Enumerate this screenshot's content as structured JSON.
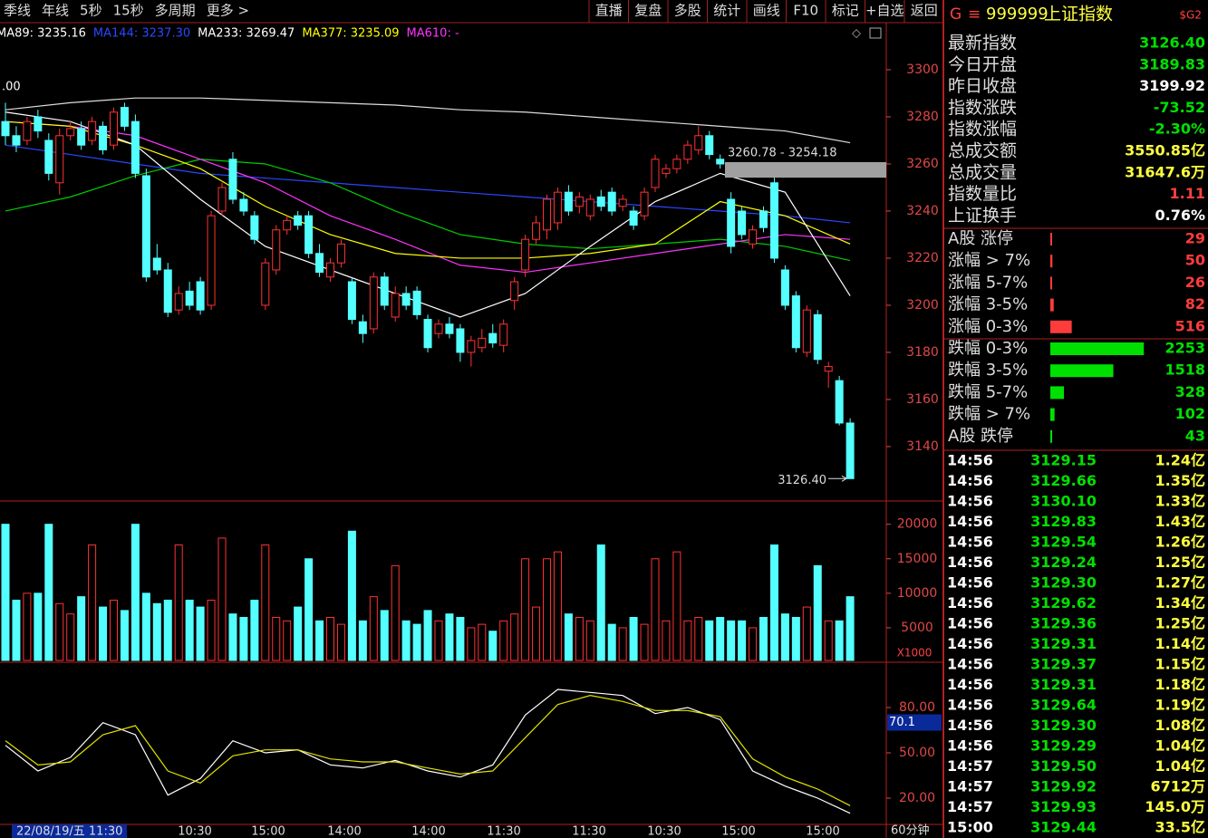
{
  "toolbar": {
    "left": [
      "季线",
      "年线",
      "5秒",
      "15秒",
      "多周期",
      "更多 >"
    ],
    "right": [
      "直播",
      "复盘",
      "多股",
      "统计",
      "画线",
      "F10",
      "标记",
      "+自选",
      "返回"
    ]
  },
  "header": {
    "flag": "G",
    "menu": "≡",
    "code": "999999",
    "name": "上证指数",
    "tag": "$G2"
  },
  "ma_legend": [
    {
      "text": "MA89: 3235.16",
      "color": "#ffffff"
    },
    {
      "text": "MA144: 3237.30",
      "color": "#2848ff"
    },
    {
      "text": "MA233: 3269.47",
      "color": "#ffffff"
    },
    {
      "text": "MA377: 3235.09",
      "color": "#ffff00"
    },
    {
      "text": "MA610: -",
      "color": "#ff33ff"
    }
  ],
  "price": {
    "ylim": [
      3116.9,
      3312.3
    ],
    "yticks": [
      3140,
      3160,
      3180,
      3200,
      3220,
      3240,
      3260,
      3280,
      3300
    ],
    "corner_label": ".00",
    "zone": {
      "label": "3260.78 - 3254.18",
      "high": 3260.78,
      "low": 3254.18
    },
    "last": {
      "value": 3126.4,
      "label": "3126.40"
    },
    "candles": [
      [
        3278,
        3286,
        3268,
        3272
      ],
      [
        3272,
        3276,
        3265,
        3268
      ],
      [
        3270,
        3280,
        3268,
        3278
      ],
      [
        3280,
        3283,
        3271,
        3274
      ],
      [
        3270,
        3273,
        3253,
        3256
      ],
      [
        3252,
        3275,
        3247,
        3272
      ],
      [
        3272,
        3278,
        3270,
        3275
      ],
      [
        3275,
        3278,
        3266,
        3268
      ],
      [
        3270,
        3280,
        3268,
        3278
      ],
      [
        3276,
        3278,
        3264,
        3266
      ],
      [
        3268,
        3284,
        3266,
        3282
      ],
      [
        3284,
        3286,
        3274,
        3276
      ],
      [
        3278,
        3281,
        3254,
        3256
      ],
      [
        3255,
        3258,
        3210,
        3212
      ],
      [
        3220,
        3226,
        3213,
        3215
      ],
      [
        3215,
        3218,
        3195,
        3197
      ],
      [
        3198,
        3208,
        3196,
        3205
      ],
      [
        3206,
        3210,
        3198,
        3200
      ],
      [
        3210,
        3212,
        3196,
        3198
      ],
      [
        3200,
        3240,
        3198,
        3238
      ],
      [
        3240,
        3252,
        3238,
        3250
      ],
      [
        3262,
        3265,
        3243,
        3245
      ],
      [
        3245,
        3248,
        3238,
        3240
      ],
      [
        3238,
        3240,
        3226,
        3228
      ],
      [
        3200,
        3220,
        3198,
        3218
      ],
      [
        3215,
        3234,
        3213,
        3232
      ],
      [
        3232,
        3238,
        3230,
        3236
      ],
      [
        3238,
        3240,
        3232,
        3234
      ],
      [
        3238,
        3240,
        3220,
        3222
      ],
      [
        3222,
        3226,
        3212,
        3214
      ],
      [
        3212,
        3220,
        3210,
        3218
      ],
      [
        3218,
        3228,
        3216,
        3226
      ],
      [
        3210,
        3212,
        3192,
        3194
      ],
      [
        3193,
        3196,
        3184,
        3188
      ],
      [
        3190,
        3214,
        3188,
        3212
      ],
      [
        3212,
        3214,
        3198,
        3200
      ],
      [
        3195,
        3208,
        3193,
        3205
      ],
      [
        3205,
        3208,
        3198,
        3200
      ],
      [
        3206,
        3208,
        3194,
        3196
      ],
      [
        3194,
        3196,
        3180,
        3182
      ],
      [
        3188,
        3194,
        3186,
        3192
      ],
      [
        3192,
        3195,
        3186,
        3188
      ],
      [
        3190,
        3192,
        3176,
        3180
      ],
      [
        3180,
        3187,
        3174,
        3185
      ],
      [
        3182,
        3190,
        3180,
        3186
      ],
      [
        3188,
        3192,
        3182,
        3184
      ],
      [
        3183,
        3194,
        3180,
        3192
      ],
      [
        3202,
        3212,
        3198,
        3210
      ],
      [
        3215,
        3230,
        3212,
        3228
      ],
      [
        3228,
        3238,
        3226,
        3235
      ],
      [
        3232,
        3247,
        3228,
        3245
      ],
      [
        3235,
        3250,
        3232,
        3248
      ],
      [
        3248,
        3251,
        3238,
        3240
      ],
      [
        3242,
        3248,
        3239,
        3246
      ],
      [
        3238,
        3247,
        3236,
        3245
      ],
      [
        3246,
        3249,
        3240,
        3242
      ],
      [
        3248,
        3250,
        3238,
        3240
      ],
      [
        3242,
        3247,
        3240,
        3245
      ],
      [
        3240,
        3242,
        3232,
        3234
      ],
      [
        3238,
        3250,
        3236,
        3248
      ],
      [
        3250,
        3264,
        3248,
        3262
      ],
      [
        3256,
        3260,
        3254,
        3258
      ],
      [
        3258,
        3264,
        3256,
        3262
      ],
      [
        3262,
        3270,
        3260,
        3268
      ],
      [
        3266,
        3276,
        3264,
        3272
      ],
      [
        3272,
        3274,
        3262,
        3264
      ],
      [
        3262,
        3264,
        3258,
        3260
      ],
      [
        3245,
        3248,
        3222,
        3225
      ],
      [
        3240,
        3242,
        3228,
        3230
      ],
      [
        3226,
        3234,
        3224,
        3232
      ],
      [
        3240,
        3242,
        3231,
        3233
      ],
      [
        3252,
        3255,
        3218,
        3220
      ],
      [
        3215,
        3217,
        3198,
        3200
      ],
      [
        3204,
        3206,
        3180,
        3182
      ],
      [
        3180,
        3200,
        3178,
        3198
      ],
      [
        3196,
        3198,
        3175,
        3177
      ],
      [
        3172,
        3176,
        3165,
        3174
      ],
      [
        3168,
        3170,
        3149,
        3150
      ],
      [
        3150,
        3152,
        3126.4,
        3126.4
      ]
    ],
    "ma_x": [
      0,
      6,
      12,
      18,
      24,
      30,
      36,
      42,
      48,
      54,
      60,
      66,
      72,
      78
    ],
    "ma_lines": [
      {
        "color": "#dddddd",
        "values": [
          3283,
          3286,
          3288,
          3288,
          3287,
          3286,
          3285,
          3283,
          3282,
          3280,
          3278,
          3276,
          3274,
          3269
        ]
      },
      {
        "color": "#2848ff",
        "values": [
          3268,
          3264,
          3260,
          3256,
          3254,
          3252,
          3250,
          3248,
          3246,
          3244,
          3242,
          3240,
          3238,
          3235
        ]
      },
      {
        "color": "#00cc00",
        "values": [
          3240,
          3246,
          3255,
          3262,
          3260,
          3252,
          3240,
          3230,
          3226,
          3224,
          3226,
          3228,
          3225,
          3219
        ]
      },
      {
        "color": "#ff33ff",
        "values": [
          3278,
          3276,
          3272,
          3262,
          3252,
          3238,
          3228,
          3217,
          3214,
          3218,
          3222,
          3226,
          3230,
          3228
        ]
      },
      {
        "color": "#ffff00",
        "values": [
          3278,
          3276,
          3268,
          3258,
          3242,
          3230,
          3222,
          3220,
          3220,
          3222,
          3226,
          3244,
          3238,
          3226
        ]
      },
      {
        "color": "#ffffff",
        "values": [
          3282,
          3278,
          3268,
          3245,
          3225,
          3215,
          3205,
          3195,
          3205,
          3225,
          3244,
          3256,
          3248,
          3204
        ]
      }
    ]
  },
  "volume": {
    "ylim": [
      0,
      23375
    ],
    "yticks": [
      5000,
      10000,
      15000,
      20000
    ],
    "unit": "X1000",
    "values": [
      20000,
      9000,
      10000,
      10000,
      20000,
      8500,
      7000,
      9500,
      17000,
      8000,
      9000,
      7500,
      20000,
      10000,
      8500,
      9000,
      17000,
      9000,
      8000,
      9000,
      18000,
      7000,
      6500,
      9000,
      17000,
      6500,
      6000,
      8000,
      15000,
      6000,
      6500,
      5500,
      19000,
      6000,
      9500,
      7500,
      14000,
      6000,
      5500,
      7500,
      6000,
      7000,
      6500,
      5000,
      5500,
      4500,
      6000,
      7000,
      15000,
      8000,
      15000,
      16000,
      7000,
      6500,
      6000,
      17000,
      5500,
      5000,
      6500,
      5500,
      15000,
      6000,
      16000,
      6000,
      6500,
      6000,
      6500,
      6000,
      6000,
      5000,
      6500,
      17000,
      7000,
      6500,
      8000,
      14000,
      6000,
      6000,
      9500
    ]
  },
  "indicator": {
    "ylim": [
      2.6,
      110
    ],
    "yticks": [
      {
        "value": 20,
        "label": "20.00"
      },
      {
        "value": 50,
        "label": "50.00"
      },
      {
        "value": 80,
        "label": "80.00"
      }
    ],
    "current": {
      "value": 70.1,
      "label": "70.1"
    },
    "x": [
      0,
      3,
      6,
      9,
      12,
      15,
      18,
      21,
      24,
      27,
      30,
      33,
      36,
      39,
      42,
      45,
      48,
      51,
      54,
      57,
      60,
      63,
      66,
      69,
      72,
      75,
      78
    ],
    "k": [
      55,
      38,
      47,
      70,
      62,
      22,
      33,
      58,
      50,
      52,
      42,
      40,
      45,
      38,
      34,
      42,
      75,
      92,
      90,
      88,
      76,
      80,
      72,
      38,
      28,
      20,
      10
    ],
    "d": [
      58,
      42,
      44,
      62,
      68,
      38,
      30,
      48,
      52,
      52,
      46,
      44,
      44,
      40,
      36,
      38,
      60,
      82,
      88,
      84,
      78,
      78,
      74,
      46,
      34,
      26,
      15
    ]
  },
  "xaxis": [
    "22/08/19/五 11:30",
    "10:30",
    "15:00",
    "14:00",
    "14:00",
    "11:30",
    "11:30",
    "10:30",
    "15:00",
    "15:00"
  ],
  "period": "60分钟",
  "quote": [
    {
      "label": "最新指数",
      "value": "3126.40",
      "color": "#00e000"
    },
    {
      "label": "今日开盘",
      "value": "3189.83",
      "color": "#00e000"
    },
    {
      "label": "昨日收盘",
      "value": "3199.92",
      "color": "#ffffff"
    },
    {
      "label": "指数涨跌",
      "value": "-73.52",
      "color": "#00e000"
    },
    {
      "label": "指数涨幅",
      "value": "-2.30%",
      "color": "#00e000"
    },
    {
      "label": "总成交额",
      "value": "3550.85亿",
      "color": "#ffff40"
    },
    {
      "label": "总成交量",
      "value": "31647.6万",
      "color": "#ffff40"
    },
    {
      "label": "指数量比",
      "value": "1.11",
      "color": "#ff4040"
    },
    {
      "label": "上证换手",
      "value": "0.76%",
      "color": "#ffffff"
    }
  ],
  "breadth": [
    {
      "label": "A股 涨停",
      "value": 29,
      "color": "#ff3c3c"
    },
    {
      "label": "涨幅 > 7%",
      "value": 50,
      "color": "#ff3c3c"
    },
    {
      "label": "涨幅 5-7%",
      "value": 26,
      "color": "#ff3c3c"
    },
    {
      "label": "涨幅 3-5%",
      "value": 82,
      "color": "#ff3c3c"
    },
    {
      "label": "涨幅 0-3%",
      "value": 516,
      "color": "#ff3c3c"
    },
    {
      "label": "跌幅 0-3%",
      "value": 2253,
      "color": "#00e000"
    },
    {
      "label": "跌幅 3-5%",
      "value": 1518,
      "color": "#00e000"
    },
    {
      "label": "跌幅 5-7%",
      "value": 328,
      "color": "#00e000"
    },
    {
      "label": "跌幅 > 7%",
      "value": 102,
      "color": "#00e000"
    },
    {
      "label": "A股 跌停",
      "value": 43,
      "color": "#00e000"
    }
  ],
  "ticks": [
    [
      "14:56",
      "3129.15",
      "1.24亿"
    ],
    [
      "14:56",
      "3129.66",
      "1.35亿"
    ],
    [
      "14:56",
      "3130.10",
      "1.33亿"
    ],
    [
      "14:56",
      "3129.83",
      "1.43亿"
    ],
    [
      "14:56",
      "3129.54",
      "1.26亿"
    ],
    [
      "14:56",
      "3129.24",
      "1.25亿"
    ],
    [
      "14:56",
      "3129.30",
      "1.27亿"
    ],
    [
      "14:56",
      "3129.62",
      "1.34亿"
    ],
    [
      "14:56",
      "3129.36",
      "1.25亿"
    ],
    [
      "14:56",
      "3129.31",
      "1.14亿"
    ],
    [
      "14:56",
      "3129.37",
      "1.15亿"
    ],
    [
      "14:56",
      "3129.31",
      "1.18亿"
    ],
    [
      "14:56",
      "3129.64",
      "1.19亿"
    ],
    [
      "14:56",
      "3129.30",
      "1.08亿"
    ],
    [
      "14:56",
      "3129.29",
      "1.04亿"
    ],
    [
      "14:57",
      "3129.50",
      "1.04亿"
    ],
    [
      "14:57",
      "3129.92",
      "6712万"
    ],
    [
      "14:57",
      "3129.93",
      "145.0万"
    ],
    [
      "15:00",
      "3129.44",
      "33.5亿"
    ]
  ]
}
